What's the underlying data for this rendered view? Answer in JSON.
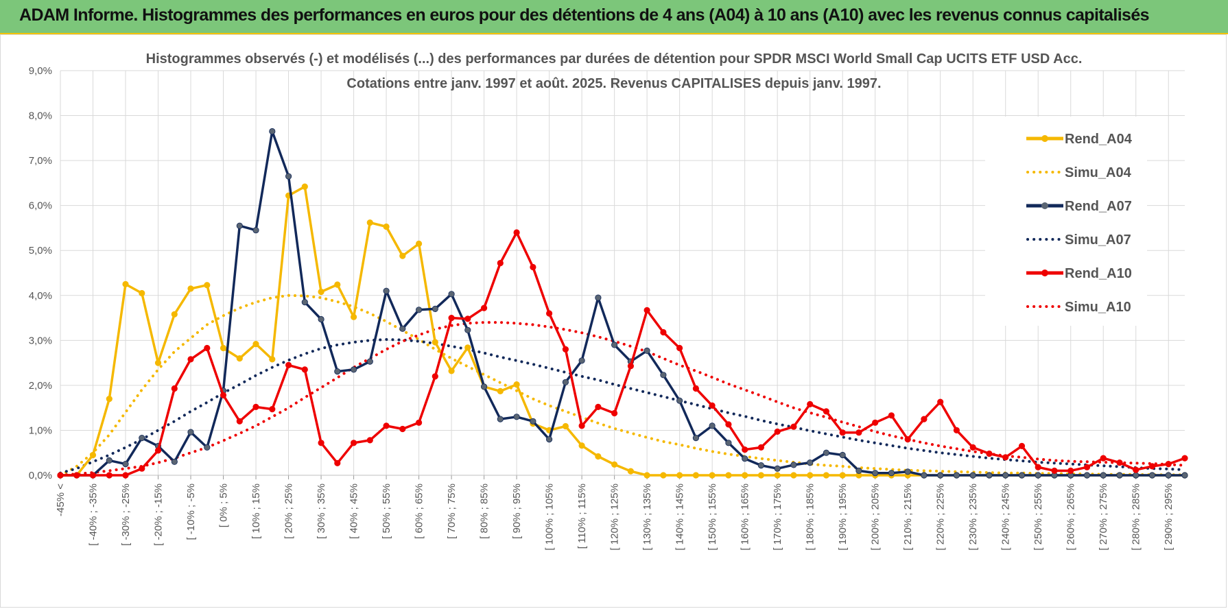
{
  "banner": {
    "title": "ADAM Informe. Histogrammes des performances en euros pour des détentions de 4 ans (A04) à 10 ans (A10) avec les revenus connus capitalisés"
  },
  "colors": {
    "A04": "#f5b800",
    "A07": "#12295a",
    "A07_marker": "#5a6573",
    "A10": "#ee0000",
    "grid": "#d9d9d9",
    "banner": "#7cc67a"
  },
  "chart_data": {
    "type": "line",
    "title": "Histogrammes observés (-) et modélisés (...) des performances par durées de détention pour SPDR MSCI World Small Cap UCITS ETF USD Acc.",
    "subtitle": "Cotations entre janv. 1997 et août. 2025. Revenus CAPITALISES depuis janv. 1997.",
    "ylim": [
      0,
      9
    ],
    "y_ticks": [
      "0,0%",
      "1,0%",
      "2,0%",
      "3,0%",
      "4,0%",
      "5,0%",
      "6,0%",
      "7,0%",
      "8,0%",
      "9,0%"
    ],
    "x_tick_labels": [
      "-45% <",
      "[ -40% ; -35%",
      "[ -30% ; -25%",
      "[ -20% ; -15%",
      "[ -10% ; -5%",
      "[ 0% ; 5%",
      "[ 10% ; 15%",
      "[ 20% ; 25%",
      "[ 30% ; 35%",
      "[ 40% ; 45%",
      "[ 50% ; 55%",
      "[ 60% ; 65%",
      "[ 70% ; 75%",
      "[ 80% ; 85%",
      "[ 90% ; 95%",
      "[ 100% ; 105%",
      "[ 110% ; 115%",
      "[ 120% ; 125%",
      "[ 130% ; 135%",
      "[ 140% ; 145%",
      "[ 150% ; 155%",
      "[ 160% ; 165%",
      "[ 170% ; 175%",
      "[ 180% ; 185%",
      "[ 190% ; 195%",
      "[ 200% ; 205%",
      "[ 210% ; 215%",
      "[ 220% ; 225%",
      "[ 230% ; 235%",
      "[ 240% ; 245%",
      "[ 250% ; 255%",
      "[ 260% ; 265%",
      "[ 270% ; 275%",
      "[ 280% ; 285%",
      "[ 290% ; 295%"
    ],
    "x_bin_count": 70,
    "grid": true,
    "legend_position": "right",
    "series": [
      {
        "name": "Rend_A04",
        "key": "A04",
        "style": "solid",
        "values": [
          0,
          0,
          0.45,
          1.7,
          4.25,
          4.05,
          2.5,
          3.58,
          4.15,
          4.23,
          2.83,
          2.6,
          2.92,
          2.58,
          6.22,
          6.42,
          4.08,
          4.24,
          3.52,
          5.62,
          5.53,
          4.88,
          5.15,
          2.96,
          2.32,
          2.84,
          1.97,
          1.87,
          2.02,
          1.15,
          1,
          1.09,
          0.66,
          0.42,
          0.24,
          0.09,
          0,
          0,
          0,
          0,
          0,
          0,
          0,
          0,
          0,
          0,
          0,
          0,
          0,
          0,
          0,
          0,
          0,
          0,
          0,
          0,
          0,
          0,
          0,
          0,
          0,
          0,
          0,
          0,
          0,
          0,
          0,
          0,
          0,
          0
        ]
      },
      {
        "name": "Simu_A04",
        "key": "A04",
        "style": "dotted",
        "values": [
          0,
          0.2,
          0.5,
          0.9,
          1.4,
          1.9,
          2.35,
          2.75,
          3.05,
          3.35,
          3.55,
          3.72,
          3.85,
          3.95,
          4,
          3.99,
          3.95,
          3.86,
          3.75,
          3.6,
          3.42,
          3.22,
          3.02,
          2.8,
          2.6,
          2.42,
          2.24,
          2.06,
          1.88,
          1.7,
          1.55,
          1.42,
          1.29,
          1.16,
          1.04,
          0.94,
          0.84,
          0.75,
          0.68,
          0.6,
          0.53,
          0.47,
          0.42,
          0.37,
          0.33,
          0.29,
          0.25,
          0.22,
          0.2,
          0.17,
          0.15,
          0.13,
          0.11,
          0.1,
          0.09,
          0.08,
          0.07,
          0.06,
          0.05,
          0.05,
          0.04,
          0.04,
          0.03,
          0.03,
          0.02,
          0.02,
          0.02,
          0.01,
          0.01,
          0.01
        ]
      },
      {
        "name": "Rend_A07",
        "key": "A07",
        "style": "solid",
        "values": [
          0,
          0,
          0,
          0.33,
          0.25,
          0.83,
          0.65,
          0.3,
          0.96,
          0.62,
          1.88,
          5.55,
          5.45,
          7.65,
          6.65,
          3.85,
          3.47,
          2.31,
          2.35,
          2.53,
          4.1,
          3.26,
          3.68,
          3.7,
          4.03,
          3.23,
          1.97,
          1.25,
          1.3,
          1.2,
          0.8,
          2.07,
          2.55,
          3.95,
          2.9,
          2.53,
          2.77,
          2.23,
          1.66,
          0.83,
          1.1,
          0.72,
          0.37,
          0.22,
          0.15,
          0.23,
          0.28,
          0.5,
          0.45,
          0.1,
          0.05,
          0.05,
          0.08,
          0,
          0,
          0,
          0,
          0,
          0,
          0,
          0,
          0,
          0,
          0,
          0,
          0,
          0,
          0,
          0,
          0
        ]
      },
      {
        "name": "Simu_A07",
        "key": "A07",
        "style": "dotted",
        "values": [
          0.05,
          0.15,
          0.3,
          0.45,
          0.62,
          0.8,
          1,
          1.2,
          1.42,
          1.62,
          1.83,
          2.02,
          2.22,
          2.4,
          2.56,
          2.7,
          2.82,
          2.9,
          2.96,
          3,
          3.02,
          3.01,
          2.98,
          2.93,
          2.87,
          2.8,
          2.72,
          2.63,
          2.55,
          2.47,
          2.38,
          2.29,
          2.2,
          2.12,
          2.02,
          1.93,
          1.84,
          1.75,
          1.66,
          1.57,
          1.48,
          1.39,
          1.31,
          1.22,
          1.14,
          1.07,
          0.99,
          0.92,
          0.85,
          0.78,
          0.72,
          0.66,
          0.6,
          0.55,
          0.5,
          0.46,
          0.42,
          0.38,
          0.35,
          0.32,
          0.29,
          0.27,
          0.25,
          0.23,
          0.21,
          0.19,
          0.17,
          0.15,
          0.14,
          0.12
        ]
      },
      {
        "name": "Rend_A10",
        "key": "A10",
        "style": "solid",
        "values": [
          0,
          0,
          0,
          0,
          0,
          0.15,
          0.55,
          1.93,
          2.58,
          2.83,
          1.78,
          1.2,
          1.52,
          1.47,
          2.45,
          2.35,
          0.72,
          0.27,
          0.72,
          0.78,
          1.1,
          1.03,
          1.17,
          2.2,
          3.5,
          3.48,
          3.72,
          4.72,
          5.4,
          4.63,
          3.6,
          2.8,
          1.1,
          1.52,
          1.38,
          2.43,
          3.67,
          3.18,
          2.83,
          1.93,
          1.55,
          1.13,
          0.57,
          0.62,
          0.97,
          1.08,
          1.58,
          1.42,
          0.95,
          0.95,
          1.17,
          1.33,
          0.8,
          1.25,
          1.63,
          1,
          0.62,
          0.48,
          0.4,
          0.65,
          0.18,
          0.1,
          0.1,
          0.18,
          0.38,
          0.28,
          0.12,
          0.2,
          0.25,
          0.38
        ]
      },
      {
        "name": "Simu_A10",
        "key": "A10",
        "style": "dotted",
        "values": [
          0,
          0.03,
          0.06,
          0.1,
          0.15,
          0.2,
          0.28,
          0.38,
          0.5,
          0.62,
          0.77,
          0.93,
          1.1,
          1.3,
          1.5,
          1.73,
          1.95,
          2.17,
          2.4,
          2.6,
          2.8,
          2.98,
          3.12,
          3.25,
          3.33,
          3.38,
          3.4,
          3.4,
          3.38,
          3.35,
          3.3,
          3.24,
          3.17,
          3.08,
          2.98,
          2.87,
          2.75,
          2.6,
          2.45,
          2.32,
          2.18,
          2.03,
          1.9,
          1.77,
          1.63,
          1.5,
          1.39,
          1.29,
          1.18,
          1.08,
          0.97,
          0.88,
          0.8,
          0.72,
          0.65,
          0.59,
          0.53,
          0.48,
          0.43,
          0.4,
          0.36,
          0.33,
          0.31,
          0.3,
          0.29,
          0.28,
          0.27,
          0.26,
          0.24,
          0.22
        ]
      }
    ]
  }
}
